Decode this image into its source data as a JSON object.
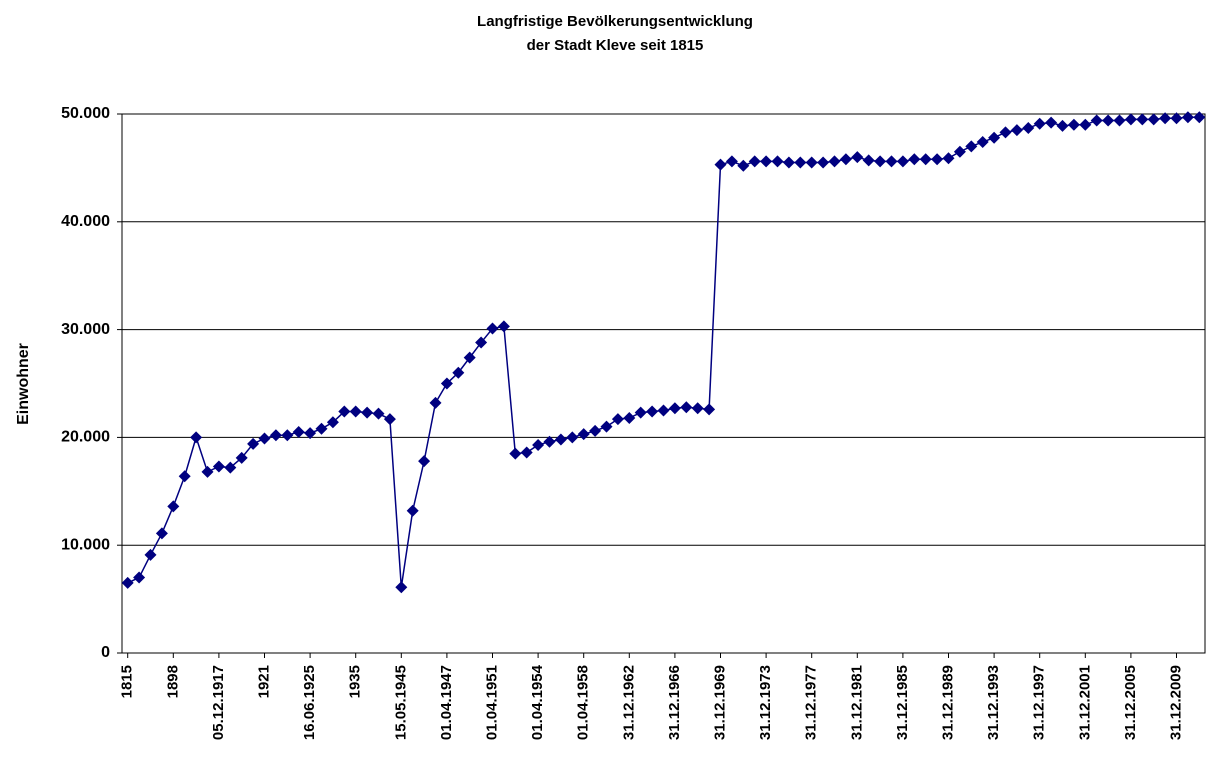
{
  "chart_data": {
    "type": "line",
    "title": [
      "Langfristige Bevölkerungsentwicklung",
      "der Stadt Kleve seit 1815"
    ],
    "y_label": "Einwohner",
    "categories": [
      "1815",
      null,
      null,
      null,
      "1898",
      null,
      null,
      null,
      "05.12.1917",
      null,
      null,
      null,
      "1921",
      null,
      null,
      null,
      "16.06.1925",
      null,
      null,
      null,
      "1935",
      null,
      null,
      null,
      "15.05.1945",
      null,
      null,
      null,
      "01.04.1947",
      null,
      null,
      null,
      "01.04.1951",
      null,
      null,
      null,
      "01.04.1954",
      null,
      null,
      null,
      "01.04.1958",
      null,
      null,
      null,
      "31.12.1962",
      null,
      null,
      null,
      "31.12.1966",
      null,
      null,
      null,
      "31.12.1969",
      null,
      null,
      null,
      "31.12.1973",
      null,
      null,
      null,
      "31.12.1977",
      null,
      null,
      null,
      "31.12.1981",
      null,
      null,
      null,
      "31.12.1985",
      null,
      null,
      null,
      "31.12.1989",
      null,
      null,
      null,
      "31.12.1993",
      null,
      null,
      null,
      "31.12.1997",
      null,
      null,
      null,
      "31.12.2001",
      null,
      null,
      null,
      "31.12.2005",
      null,
      null,
      null,
      "31.12.2009",
      null,
      null
    ],
    "values": [
      6500,
      7000,
      9100,
      11100,
      13600,
      16400,
      20000,
      16800,
      17300,
      17200,
      18100,
      19400,
      19900,
      20200,
      20200,
      20500,
      20400,
      20800,
      21400,
      22400,
      22400,
      22300,
      22200,
      21700,
      6100,
      13200,
      17800,
      23200,
      25000,
      26000,
      27400,
      28800,
      30100,
      30300,
      18500,
      18600,
      19300,
      19600,
      19800,
      20000,
      20300,
      20600,
      21000,
      21700,
      21800,
      22300,
      22400,
      22500,
      22700,
      22800,
      22700,
      22600,
      45300,
      45600,
      45200,
      45600,
      45600,
      45600,
      45500,
      45500,
      45500,
      45500,
      45600,
      45800,
      46000,
      45700,
      45600,
      45600,
      45600,
      45800,
      45800,
      45800,
      45900,
      46500,
      47000,
      47400,
      47800,
      48300,
      48500,
      48700,
      49100,
      49200,
      48900,
      49000,
      49000,
      49400,
      49400,
      49400,
      49500,
      49500,
      49500,
      49600,
      49600,
      49700,
      49700
    ],
    "color": "#000080",
    "ylim": [
      0,
      50000
    ],
    "yticks": [
      0,
      {
        "value": 10000,
        "label": "10.000"
      },
      {
        "value": 20000,
        "label": "20.000"
      },
      {
        "value": 30000,
        "label": "30.000"
      },
      {
        "value": 40000,
        "label": "40.000"
      },
      {
        "value": 50000,
        "label": "50.000"
      }
    ],
    "grid": true
  }
}
